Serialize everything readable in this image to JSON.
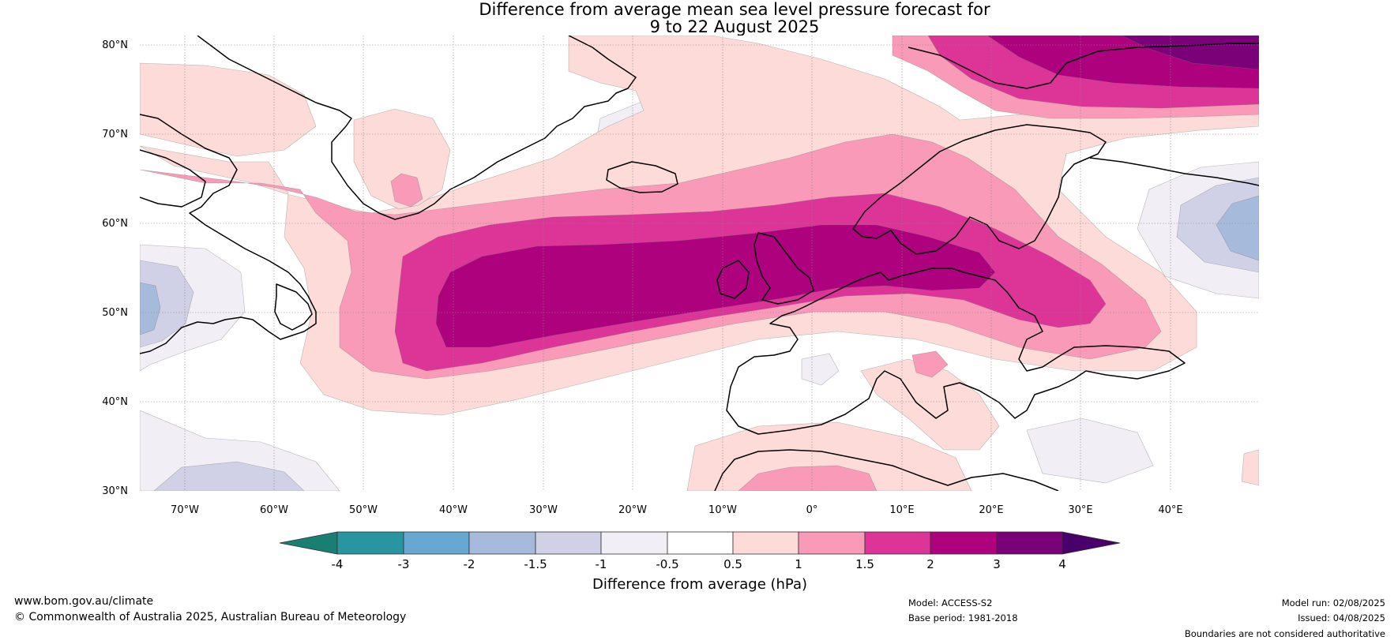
{
  "title_line1": "Difference from average mean sea level pressure forecast for",
  "title_line2": "9 to 22 August 2025",
  "map": {
    "lat_labels": [
      "80°N",
      "70°N",
      "60°N",
      "50°N",
      "40°N",
      "30°N"
    ],
    "lon_labels": [
      "70°W",
      "60°W",
      "50°W",
      "40°W",
      "30°W",
      "20°W",
      "10°W",
      "0°",
      "10°E",
      "20°E",
      "30°E",
      "40°E"
    ],
    "extent": {
      "lon_min": -75,
      "lon_max": 50,
      "lat_min": 30,
      "lat_max": 81
    }
  },
  "colorbar": {
    "title": "Difference from average (hPa)",
    "tick_labels": [
      "-4",
      "-3",
      "-2",
      "-1.5",
      "-1",
      "-0.5",
      "0.5",
      "1",
      "1.5",
      "2",
      "3",
      "4"
    ],
    "colors": [
      "#1a7f73",
      "#2895a0",
      "#67a8d2",
      "#a6bbdb",
      "#d0d1e6",
      "#f1eef6",
      "#ffffff",
      "#fddbd9",
      "#f89ab8",
      "#dd3497",
      "#ae017e",
      "#7a0177",
      "#49006a"
    ]
  },
  "footer": {
    "website": "www.bom.gov.au/climate",
    "copyright": "© Commonwealth of Australia 2025, Australian Bureau of Meteorology",
    "model": "Model: ACCESS-S2",
    "base_period": "Base period: 1981-2018",
    "model_run": "Model run: 02/08/2025",
    "issued": "Issued: 04/08/2025",
    "boundaries": "Boundaries are not considered authoritative"
  }
}
